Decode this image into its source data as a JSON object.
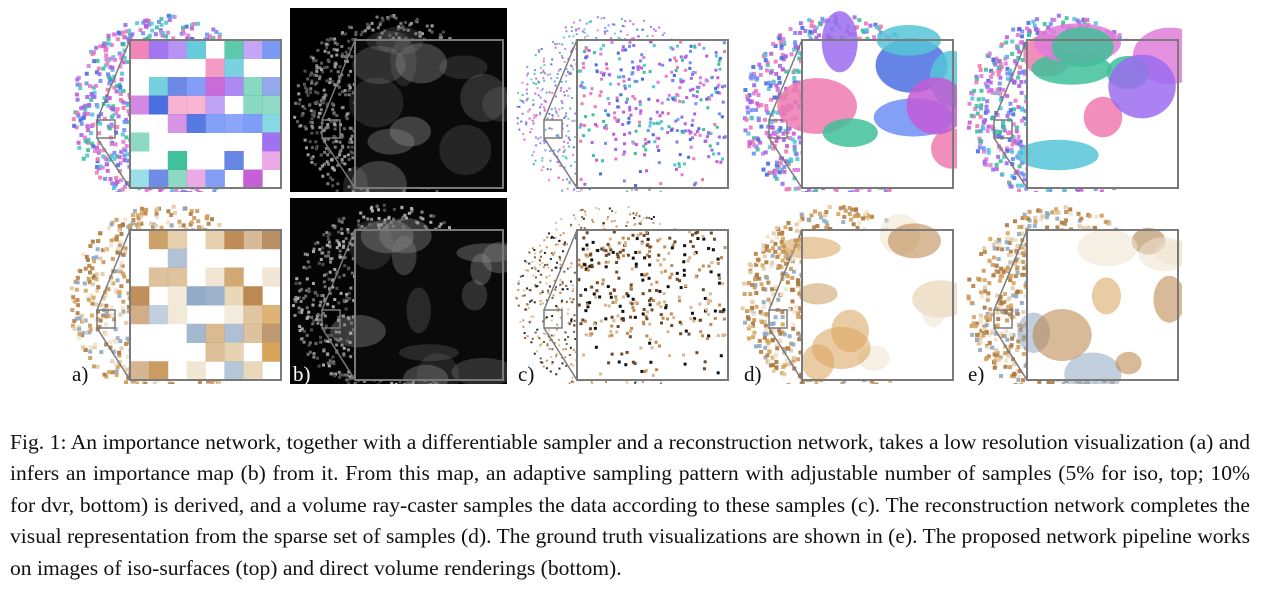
{
  "figure": {
    "panels": [
      {
        "id": "a",
        "label": "a)"
      },
      {
        "id": "b",
        "label": "b)"
      },
      {
        "id": "c",
        "label": "c)"
      },
      {
        "id": "d",
        "label": "d)"
      },
      {
        "id": "e",
        "label": "e)"
      }
    ]
  },
  "caption": {
    "text": "Fig. 1: An importance network, together with a differentiable sampler and a reconstruction network, takes a low resolution visualization (a) and infers an importance map (b) from it. From this map, an adaptive sampling pattern with adjustable number of samples (5% for iso, top; 10% for dvr, bottom) is derived, and a volume ray-caster samples the data according to these samples (c). The reconstruction network completes the visual representation from the sparse set of samples (d). The ground truth visualizations are shown in (e). The proposed network pipeline works on images of iso-surfaces (top) and direct volume renderings (bottom)."
  },
  "colors": {
    "iso_palette": [
      "#9b6cf0",
      "#6f8ff5",
      "#e07bd9",
      "#55c6d8",
      "#3fbf9a",
      "#c35bd6",
      "#4a6ee0",
      "#f07ab0"
    ],
    "dvr_palette": [
      "#c99a5e",
      "#b87f44",
      "#e2c9a2",
      "#d9a35a",
      "#a9773f",
      "#efe2cc",
      "#8fa8c4"
    ],
    "frame": "#7a7a7a"
  }
}
